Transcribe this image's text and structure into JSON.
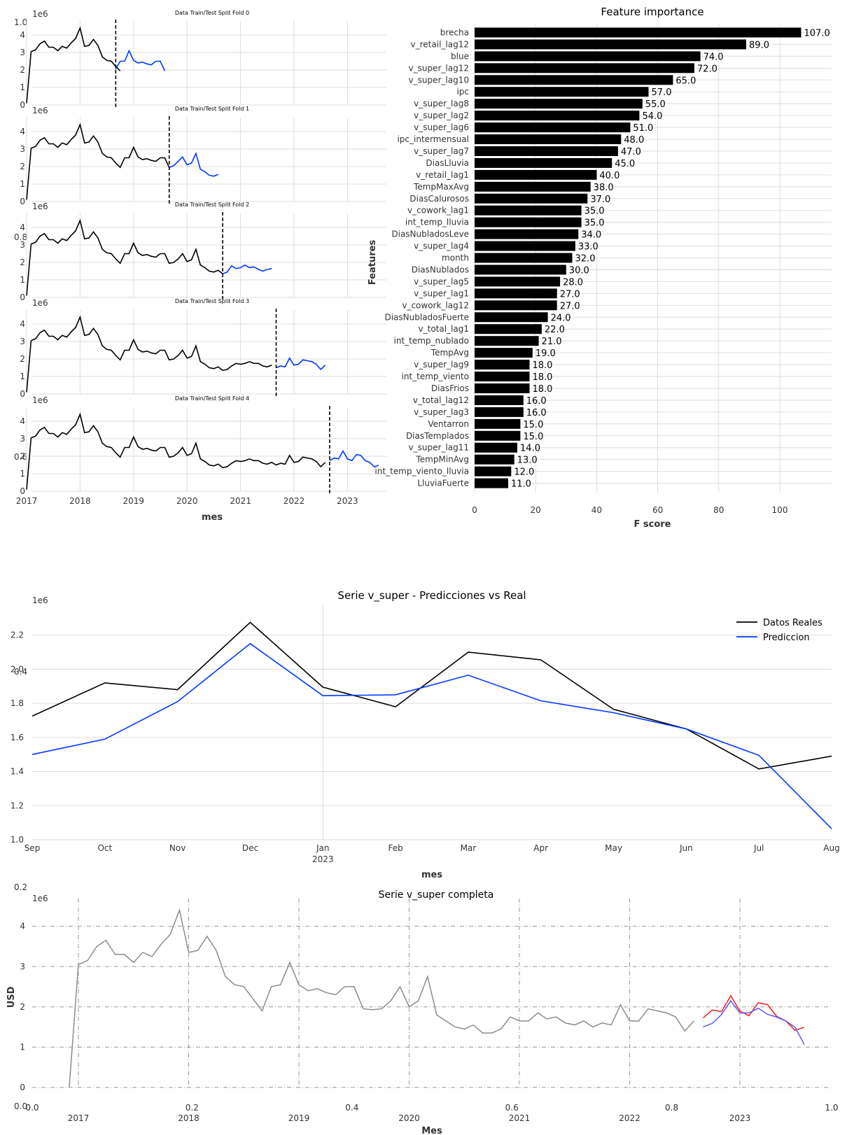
{
  "chart_data": [
    {
      "type": "line",
      "panel": "train-test-split",
      "title": "Data Train/Test Split Fold 0",
      "ylabel_scale": "1e6",
      "ylim": [
        0,
        4.8
      ],
      "y_ticks": [
        0,
        1,
        2,
        3,
        4
      ],
      "split_date": "2018-09",
      "series": [
        {
          "name": "train",
          "color": "#000000",
          "start": "2017-01",
          "values": [
            0.1,
            3.05,
            3.15,
            3.5,
            3.65,
            3.3,
            3.3,
            3.1,
            3.35,
            3.25,
            3.55,
            3.8,
            4.4,
            3.35,
            3.4,
            3.75,
            3.4,
            2.75,
            2.55,
            2.5,
            2.2,
            1.95
          ]
        },
        {
          "name": "test",
          "color": "#0038ff",
          "start": "2018-09",
          "values": [
            2.05,
            2.5,
            2.5,
            3.1,
            2.55,
            2.4,
            2.45,
            2.35,
            2.3,
            2.5,
            2.5,
            1.95
          ]
        }
      ]
    },
    {
      "type": "line",
      "panel": "train-test-split",
      "title": "Data Train/Test Split Fold 1",
      "ylabel_scale": "1e6",
      "ylim": [
        0,
        4.8
      ],
      "y_ticks": [
        0,
        1,
        2,
        3,
        4
      ],
      "split_date": "2019-09",
      "series": [
        {
          "name": "train",
          "color": "#000000",
          "start": "2017-01",
          "values": [
            0.1,
            3.05,
            3.15,
            3.5,
            3.65,
            3.3,
            3.3,
            3.1,
            3.35,
            3.25,
            3.55,
            3.8,
            4.4,
            3.35,
            3.4,
            3.75,
            3.4,
            2.75,
            2.55,
            2.5,
            2.2,
            1.95,
            2.5,
            2.5,
            3.1,
            2.55,
            2.4,
            2.45,
            2.35,
            2.3,
            2.5,
            2.5,
            1.95
          ]
        },
        {
          "name": "test",
          "color": "#0038ff",
          "start": "2019-09",
          "values": [
            1.95,
            2.05,
            2.3,
            2.55,
            2.1,
            2.2,
            2.75,
            1.85,
            1.7,
            1.5,
            1.45,
            1.55
          ]
        }
      ]
    },
    {
      "type": "line",
      "panel": "train-test-split",
      "title": "Data Train/Test Split Fold 2",
      "ylabel_scale": "1e6",
      "ylim": [
        0,
        4.8
      ],
      "y_ticks": [
        0,
        1,
        2,
        3,
        4
      ],
      "split_date": "2020-09",
      "series": [
        {
          "name": "train",
          "color": "#000000",
          "start": "2017-01",
          "values": [
            0.1,
            3.05,
            3.15,
            3.5,
            3.65,
            3.3,
            3.3,
            3.1,
            3.35,
            3.25,
            3.55,
            3.8,
            4.4,
            3.35,
            3.4,
            3.75,
            3.4,
            2.75,
            2.55,
            2.5,
            2.2,
            1.95,
            2.5,
            2.5,
            3.1,
            2.55,
            2.4,
            2.45,
            2.35,
            2.3,
            2.5,
            2.5,
            1.95,
            2.0,
            2.2,
            2.5,
            2.05,
            2.15,
            2.75,
            1.85,
            1.7,
            1.5,
            1.45,
            1.55,
            1.35
          ]
        },
        {
          "name": "test",
          "color": "#0038ff",
          "start": "2020-09",
          "values": [
            1.35,
            1.45,
            1.8,
            1.65,
            1.7,
            1.85,
            1.7,
            1.75,
            1.6,
            1.5,
            1.6,
            1.65
          ]
        }
      ]
    },
    {
      "type": "line",
      "panel": "train-test-split",
      "title": "Data Train/Test Split Fold 3",
      "ylabel_scale": "1e6",
      "ylim": [
        0,
        4.8
      ],
      "y_ticks": [
        0,
        1,
        2,
        3,
        4
      ],
      "split_date": "2021-09",
      "series": [
        {
          "name": "train",
          "color": "#000000",
          "start": "2017-01",
          "values": [
            0.1,
            3.05,
            3.15,
            3.5,
            3.65,
            3.3,
            3.3,
            3.1,
            3.35,
            3.25,
            3.55,
            3.8,
            4.4,
            3.35,
            3.4,
            3.75,
            3.4,
            2.75,
            2.55,
            2.5,
            2.2,
            1.95,
            2.5,
            2.5,
            3.1,
            2.55,
            2.4,
            2.45,
            2.35,
            2.3,
            2.5,
            2.5,
            1.95,
            2.0,
            2.2,
            2.5,
            2.05,
            2.15,
            2.75,
            1.85,
            1.7,
            1.5,
            1.45,
            1.55,
            1.35,
            1.4,
            1.6,
            1.75,
            1.7,
            1.75,
            1.85,
            1.75,
            1.75,
            1.6,
            1.55,
            1.65
          ]
        },
        {
          "name": "test",
          "color": "#0038ff",
          "start": "2021-09",
          "values": [
            1.5,
            1.6,
            1.55,
            2.05,
            1.65,
            1.7,
            1.95,
            1.9,
            1.85,
            1.7,
            1.4,
            1.65
          ]
        }
      ]
    },
    {
      "type": "line",
      "panel": "train-test-split",
      "title": "Data Train/Test Split Fold 4",
      "ylabel_scale": "1e6",
      "xlabel": "mes",
      "x_ticks": [
        "2017",
        "2018",
        "2019",
        "2020",
        "2021",
        "2022",
        "2023"
      ],
      "ylim": [
        0,
        4.8
      ],
      "y_ticks": [
        0,
        1,
        2,
        3,
        4
      ],
      "split_date": "2022-09",
      "series": [
        {
          "name": "train",
          "color": "#000000",
          "start": "2017-01",
          "values": [
            0.1,
            3.05,
            3.15,
            3.5,
            3.65,
            3.3,
            3.3,
            3.1,
            3.35,
            3.25,
            3.55,
            3.8,
            4.4,
            3.35,
            3.4,
            3.75,
            3.4,
            2.75,
            2.55,
            2.5,
            2.2,
            1.95,
            2.5,
            2.5,
            3.1,
            2.55,
            2.4,
            2.45,
            2.35,
            2.3,
            2.5,
            2.5,
            1.95,
            2.0,
            2.2,
            2.5,
            2.05,
            2.15,
            2.75,
            1.85,
            1.7,
            1.5,
            1.45,
            1.55,
            1.35,
            1.4,
            1.6,
            1.75,
            1.7,
            1.75,
            1.85,
            1.75,
            1.75,
            1.6,
            1.55,
            1.65,
            1.5,
            1.6,
            1.55,
            2.05,
            1.65,
            1.7,
            1.95,
            1.9,
            1.85,
            1.7,
            1.4,
            1.65
          ]
        },
        {
          "name": "test",
          "color": "#0038ff",
          "start": "2022-09",
          "values": [
            1.75,
            1.9,
            1.85,
            2.3,
            1.85,
            1.75,
            2.1,
            2.05,
            1.75,
            1.65,
            1.4,
            1.48
          ]
        }
      ]
    },
    {
      "type": "bar",
      "orientation": "horizontal",
      "title": "Feature importance",
      "xlabel": "F score",
      "ylabel": "Features",
      "xlim": [
        0,
        117
      ],
      "x_ticks": [
        "0",
        "20",
        "40",
        "60",
        "80",
        "100"
      ],
      "bar_color": "#000000",
      "categories": [
        "brecha",
        "v_retail_lag12",
        "blue",
        "v_super_lag12",
        "v_super_lag10",
        "ipc",
        "v_super_lag8",
        "v_super_lag2",
        "v_super_lag6",
        "ipc_intermensual",
        "v_super_lag7",
        "DiasLluvia",
        "v_retail_lag1",
        "TempMaxAvg",
        "DiasCalurosos",
        "v_cowork_lag1",
        "int_temp_lluvia",
        "DiasNubladosLeve",
        "v_super_lag4",
        "month",
        "DiasNublados",
        "v_super_lag5",
        "v_super_lag1",
        "v_cowork_lag12",
        "DiasNubladosFuerte",
        "v_total_lag1",
        "int_temp_nublado",
        "TempAvg",
        "v_super_lag9",
        "int_temp_viento",
        "DiasFrios",
        "v_total_lag12",
        "v_super_lag3",
        "Ventarron",
        "DiasTemplados",
        "v_super_lag11",
        "TempMinAvg",
        "int_temp_viento_lluvia",
        "LluviaFuerte"
      ],
      "values": [
        107,
        89,
        74,
        72,
        65,
        57,
        55,
        54,
        51,
        48,
        47,
        45,
        40,
        38,
        37,
        35,
        35,
        34,
        33,
        32,
        30,
        28,
        27,
        27,
        24,
        22,
        21,
        19,
        18,
        18,
        18,
        16,
        16,
        15,
        15,
        14,
        13,
        12,
        11
      ],
      "value_labels": [
        "107.0",
        "89.0",
        "74.0",
        "72.0",
        "65.0",
        "57.0",
        "55.0",
        "54.0",
        "51.0",
        "48.0",
        "47.0",
        "45.0",
        "40.0",
        "38.0",
        "37.0",
        "35.0",
        "35.0",
        "34.0",
        "33.0",
        "32.0",
        "30.0",
        "28.0",
        "27.0",
        "27.0",
        "24.0",
        "22.0",
        "21.0",
        "19.0",
        "18.0",
        "18.0",
        "18.0",
        "16.0",
        "16.0",
        "15.0",
        "15.0",
        "14.0",
        "13.0",
        "12.0",
        "11.0"
      ]
    },
    {
      "type": "line",
      "title": "Serie v_super - Predicciones vs Real",
      "xlabel": "mes",
      "ylabel_scale": "1e6",
      "x_ticks": [
        "Sep",
        "Oct",
        "Nov",
        "Dec",
        "Jan",
        "Feb",
        "Mar",
        "Apr",
        "May",
        "Jun",
        "Jul",
        "Aug"
      ],
      "x_year_label": "2023",
      "ylim": [
        1.0,
        2.33
      ],
      "y_ticks": [
        "1.0",
        "1.2",
        "1.4",
        "1.6",
        "1.8",
        "2.0",
        "2.2"
      ],
      "legend": "top-right",
      "series": [
        {
          "name": "Datos Reales",
          "color": "#000000",
          "values": [
            1.725,
            1.92,
            1.88,
            2.275,
            1.895,
            1.78,
            2.1,
            2.055,
            1.765,
            1.65,
            1.415,
            1.49
          ]
        },
        {
          "name": "Prediccion",
          "color": "#0038ff",
          "values": [
            1.5,
            1.59,
            1.81,
            2.15,
            1.845,
            1.85,
            1.965,
            1.815,
            1.745,
            1.65,
            1.495,
            1.065
          ]
        }
      ]
    },
    {
      "type": "line",
      "title": "Serie v_super completa",
      "xlabel": "Mes",
      "ylabel": "USD",
      "ylabel_scale": "1e6",
      "x_ticks": [
        "2017",
        "2018",
        "2019",
        "2020",
        "2021",
        "2022",
        "2023"
      ],
      "ylim": [
        0,
        4.55
      ],
      "y_ticks": [
        "0",
        "1",
        "2",
        "3",
        "4"
      ],
      "grid": "dash-dot",
      "series": [
        {
          "color": "#8c8c8c",
          "start": "2016-12",
          "values": [
            0.0,
            3.05,
            3.15,
            3.5,
            3.65,
            3.3,
            3.3,
            3.1,
            3.35,
            3.25,
            3.55,
            3.8,
            4.4,
            3.35,
            3.4,
            3.75,
            3.4,
            2.75,
            2.55,
            2.5,
            2.2,
            1.9,
            2.5,
            2.55,
            3.1,
            2.55,
            2.4,
            2.45,
            2.35,
            2.3,
            2.5,
            2.5,
            1.95,
            1.93,
            1.95,
            2.15,
            2.5,
            2.0,
            2.15,
            2.75,
            1.8,
            1.65,
            1.5,
            1.45,
            1.55,
            1.35,
            1.35,
            1.45,
            1.75,
            1.65,
            1.65,
            1.85,
            1.7,
            1.75,
            1.6,
            1.55,
            1.65,
            1.5,
            1.6,
            1.55,
            2.05,
            1.65,
            1.65,
            1.95,
            1.9,
            1.85,
            1.75,
            1.4,
            1.65
          ]
        },
        {
          "color": "#ff1a1a",
          "start": "2022-09",
          "values": [
            1.725,
            1.92,
            1.88,
            2.275,
            1.895,
            1.78,
            2.1,
            2.055,
            1.765,
            1.65,
            1.415,
            1.49
          ]
        },
        {
          "color": "#5a5aff",
          "start": "2022-09",
          "values": [
            1.5,
            1.59,
            1.81,
            2.15,
            1.845,
            1.85,
            1.965,
            1.815,
            1.745,
            1.65,
            1.495,
            1.065
          ]
        }
      ]
    }
  ],
  "stray_tick_labels": {
    "fold0_top_left": "1.0",
    "fold1_offset_label": "1e6",
    "fold2_left_extra": "0.8",
    "fold3_left_extra": "2",
    "fold4_left_extra": "0.6",
    "pred_left_extra": "0.4",
    "pred_bottom_left": "0.2",
    "bottom_zero": "0.0",
    "bottom_axis": [
      "0.0",
      "0.2",
      "0.4",
      "0.6",
      "0.8",
      "1.0"
    ]
  }
}
